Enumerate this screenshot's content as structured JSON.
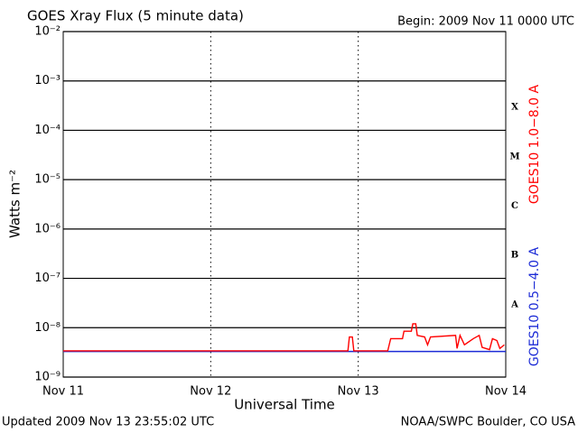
{
  "chart_data": {
    "type": "line",
    "title": "GOES Xray Flux (5 minute data)",
    "subtitle": "Begin:  2009 Nov 11 0000 UTC",
    "xlabel": "Universal Time",
    "ylabel": "Watts m⁻²",
    "footer_left": "Updated 2009 Nov 13 23:55:02 UTC",
    "footer_right": "NOAA/SWPC Boulder, CO USA",
    "log_y": true,
    "grid": true,
    "xlim": [
      0,
      3
    ],
    "xticks": [
      {
        "value": 0,
        "label": "Nov 11"
      },
      {
        "value": 1,
        "label": "Nov 12"
      },
      {
        "value": 2,
        "label": "Nov 13"
      },
      {
        "value": 3,
        "label": "Nov 14"
      }
    ],
    "ylim": [
      1e-09,
      0.01
    ],
    "yticks": [
      {
        "value": 1e-09,
        "label": "10⁻⁹"
      },
      {
        "value": 1e-08,
        "label": "10⁻⁸"
      },
      {
        "value": 1e-07,
        "label": "10⁻⁷"
      },
      {
        "value": 1e-06,
        "label": "10⁻⁶"
      },
      {
        "value": 1e-05,
        "label": "10⁻⁵"
      },
      {
        "value": 0.0001,
        "label": "10⁻⁴"
      },
      {
        "value": 0.001,
        "label": "10⁻³"
      },
      {
        "value": 0.01,
        "label": "10⁻²"
      }
    ],
    "flare_classes": [
      "A",
      "B",
      "C",
      "M",
      "X"
    ],
    "series": [
      {
        "name": "GOES10 1.0−8.0 A",
        "color": "#ff0000",
        "x": [
          0,
          1.93,
          1.94,
          1.96,
          1.97,
          2.2,
          2.22,
          2.3,
          2.31,
          2.36,
          2.37,
          2.39,
          2.4,
          2.45,
          2.47,
          2.49,
          2.66,
          2.67,
          2.69,
          2.72,
          2.78,
          2.82,
          2.84,
          2.89,
          2.91,
          2.94,
          2.96,
          2.99
        ],
        "values": [
          3.4e-09,
          3.4e-09,
          6.5e-09,
          6.5e-09,
          3.4e-09,
          3.4e-09,
          6e-09,
          6e-09,
          8.5e-09,
          8.5e-09,
          1.2e-08,
          1.2e-08,
          7e-09,
          6.5e-09,
          4.5e-09,
          6.5e-09,
          7e-09,
          3.8e-09,
          7e-09,
          4.5e-09,
          6e-09,
          7e-09,
          4e-09,
          3.6e-09,
          6e-09,
          5.5e-09,
          3.8e-09,
          4.5e-09
        ]
      },
      {
        "name": "GOES10 0.5−4.0 A",
        "color": "#1c2bd6",
        "x": [
          0,
          3
        ],
        "values": [
          3.3e-09,
          3.3e-09
        ]
      }
    ]
  }
}
